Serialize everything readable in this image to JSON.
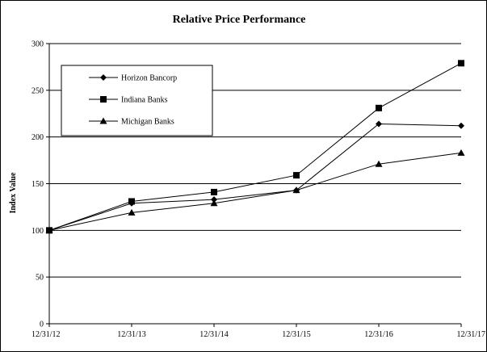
{
  "chart_data": {
    "type": "line",
    "title": "Relative Price Performance",
    "xlabel": "",
    "ylabel": "Index Value",
    "categories": [
      "12/31/12",
      "12/31/13",
      "12/31/14",
      "12/31/15",
      "12/31/16",
      "12/31/17"
    ],
    "yticks": [
      "0",
      "50",
      "100",
      "150",
      "200",
      "250",
      "300"
    ],
    "ylim": [
      0,
      300
    ],
    "grid": "horizontal",
    "legend_position": "top-left",
    "series": [
      {
        "name": "Horizon Bancorp",
        "marker": "diamond",
        "values": [
          100,
          129,
          133,
          143,
          214,
          212
        ]
      },
      {
        "name": "Indiana Banks",
        "marker": "square",
        "values": [
          100,
          131,
          141,
          159,
          231,
          279
        ]
      },
      {
        "name": "Michigan Banks",
        "marker": "triangle",
        "values": [
          100,
          119,
          129,
          143,
          171,
          183
        ]
      }
    ]
  }
}
